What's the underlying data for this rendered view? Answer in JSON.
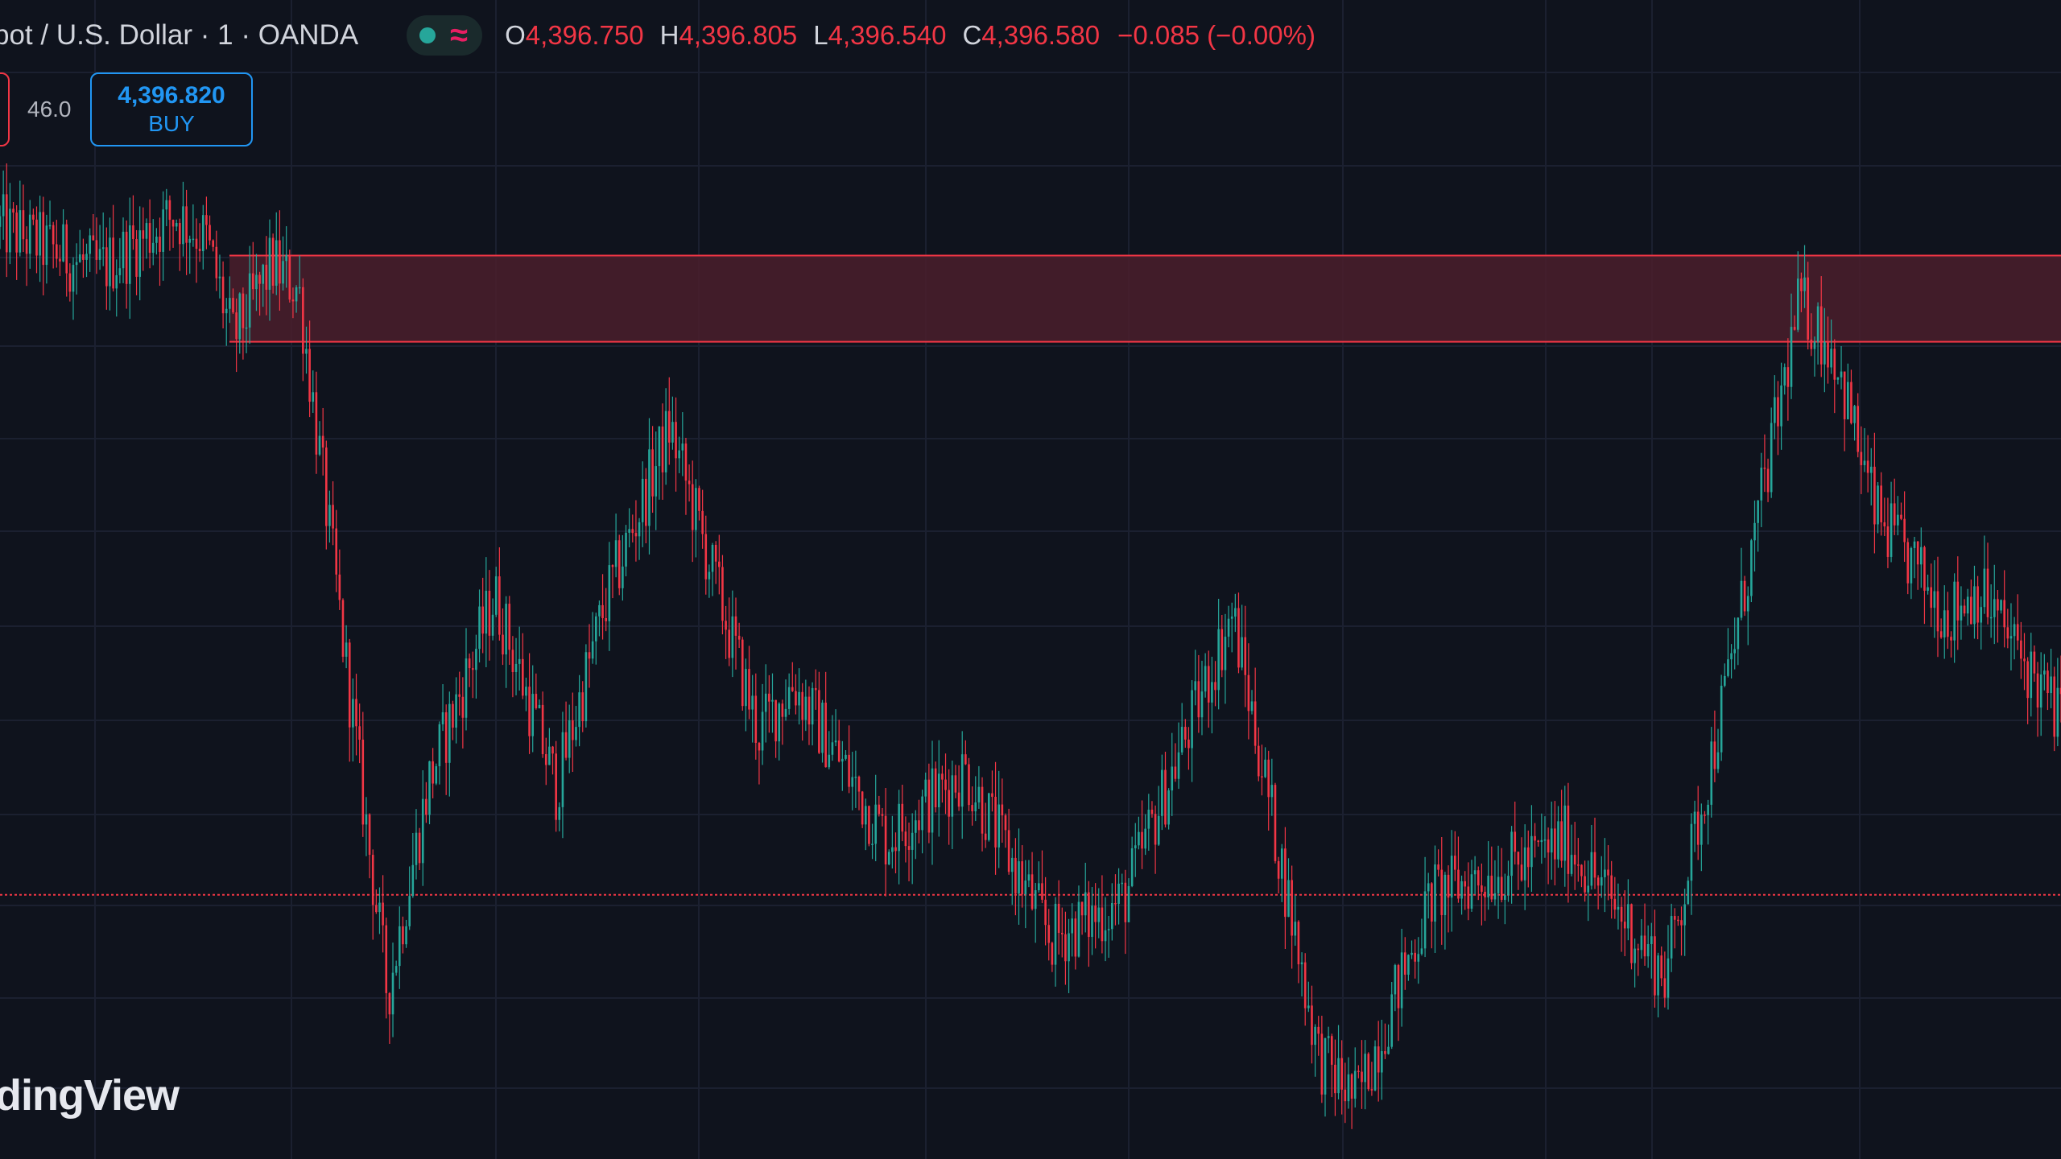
{
  "header": {
    "symbol_title": "pot / U.S. Dollar · 1 · OANDA",
    "ohlc": [
      {
        "key": "O",
        "value": "4,396.750"
      },
      {
        "key": "H",
        "value": "4,396.805"
      },
      {
        "key": "L",
        "value": "4,396.540"
      },
      {
        "key": "C",
        "value": "4,396.580"
      }
    ],
    "change": "−0.085 (−0.00%)",
    "status_icons": [
      "market-open-dot-icon",
      "wave-icon"
    ]
  },
  "trade_buttons": {
    "spread": "46.0",
    "buy_price": "4,396.820",
    "buy_label": "BUY"
  },
  "watermark": "dingView",
  "colors": {
    "background": "#0f131d",
    "grid": "#1b2030",
    "up": "#26a69a",
    "down": "#f23645",
    "zone_fill": "#4a1e2c",
    "zone_border": "#f23645",
    "buy": "#2196f3",
    "text": "#d1d4dc"
  },
  "chart_data": {
    "type": "candlestick",
    "title": "pot / U.S. Dollar · 1 · OANDA",
    "xlabel": "",
    "ylabel": "",
    "grid": true,
    "waypoints": [
      {
        "x": 0,
        "price": 4397.45
      },
      {
        "x": 0.048,
        "price": 4397.1
      },
      {
        "x": 0.085,
        "price": 4397.55
      },
      {
        "x": 0.1,
        "price": 4397.35
      },
      {
        "x": 0.113,
        "price": 4396.55
      },
      {
        "x": 0.132,
        "price": 4397.15
      },
      {
        "x": 0.145,
        "price": 4396.95
      },
      {
        "x": 0.188,
        "price": 4391.3
      },
      {
        "x": 0.208,
        "price": 4393.0
      },
      {
        "x": 0.24,
        "price": 4394.5
      },
      {
        "x": 0.27,
        "price": 4392.95
      },
      {
        "x": 0.293,
        "price": 4394.4
      },
      {
        "x": 0.325,
        "price": 4395.85
      },
      {
        "x": 0.368,
        "price": 4393.4
      },
      {
        "x": 0.385,
        "price": 4393.8
      },
      {
        "x": 0.43,
        "price": 4392.55
      },
      {
        "x": 0.468,
        "price": 4393.1
      },
      {
        "x": 0.51,
        "price": 4391.75
      },
      {
        "x": 0.545,
        "price": 4392.05
      },
      {
        "x": 0.598,
        "price": 4394.35
      },
      {
        "x": 0.64,
        "price": 4390.8
      },
      {
        "x": 0.658,
        "price": 4390.45
      },
      {
        "x": 0.695,
        "price": 4392.1
      },
      {
        "x": 0.745,
        "price": 4392.4
      },
      {
        "x": 0.76,
        "price": 4392.55
      },
      {
        "x": 0.808,
        "price": 4391.45
      },
      {
        "x": 0.835,
        "price": 4393.55
      },
      {
        "x": 0.873,
        "price": 4396.85
      },
      {
        "x": 0.89,
        "price": 4396.45
      },
      {
        "x": 0.91,
        "price": 4395.15
      },
      {
        "x": 0.945,
        "price": 4394.35
      },
      {
        "x": 0.96,
        "price": 4394.55
      },
      {
        "x": 1.0,
        "price": 4393.5
      }
    ],
    "resistance_zone": {
      "top": 4397.22,
      "bottom": 4396.53
    },
    "dotted_level": 4392.1,
    "price_range": [
      4390.5,
      4398.3
    ]
  }
}
